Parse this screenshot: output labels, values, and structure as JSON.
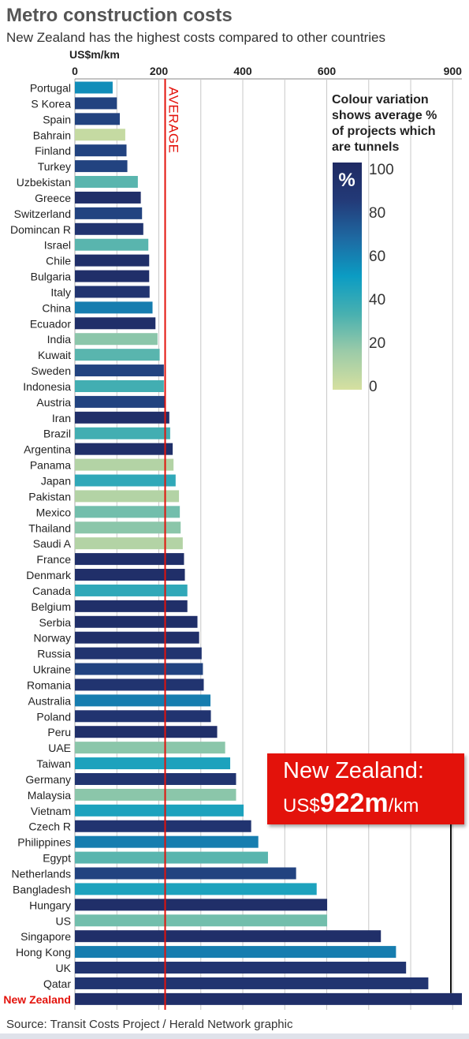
{
  "title": "Metro construction costs",
  "subtitle": "New Zealand has the highest costs compared to other countries",
  "unit_label": "US$m/km",
  "source": "Source: Transit Costs Project / Herald Network graphic",
  "average_label": "AVERAGE",
  "callout": {
    "line1": "New Zealand:",
    "currency": "US$",
    "value": "922m",
    "unit": "/km"
  },
  "legend": {
    "title_lines": [
      "Colour variation",
      "shows average %",
      "of projects which",
      "are tunnels"
    ],
    "symbol": "%",
    "ticks": [
      "100",
      "80",
      "60",
      "40",
      "20",
      "0"
    ]
  },
  "colors": {
    "accent": "#e3120b",
    "scale": [
      "#d6e0a0",
      "#9ccba8",
      "#48b0b0",
      "#0b9cc3",
      "#1e69a2",
      "#233a78",
      "#1f2a63"
    ]
  },
  "chart_data": {
    "type": "bar",
    "orientation": "horizontal",
    "xlim": [
      0,
      922
    ],
    "x_ticks": [
      0,
      200,
      400,
      600,
      900
    ],
    "grid": true,
    "average": 215,
    "legend_position": "top-right",
    "categories": [
      "Portugal",
      "S Korea",
      "Spain",
      "Bahrain",
      "Finland",
      "Turkey",
      "Uzbekistan",
      "Greece",
      "Switzerland",
      "Domincan R",
      "Israel",
      "Chile",
      "Bulgaria",
      "Italy",
      "China",
      "Ecuador",
      "India",
      "Kuwait",
      "Sweden",
      "Indonesia",
      "Austria",
      "Iran",
      "Brazil",
      "Argentina",
      "Panama",
      "Japan",
      "Pakistan",
      "Mexico",
      "Thailand",
      "Saudi A",
      "France",
      "Denmark",
      "Canada",
      "Belgium",
      "Serbia",
      "Norway",
      "Russia",
      "Ukraine",
      "Romania",
      "Australia",
      "Poland",
      "Peru",
      "UAE",
      "Taiwan",
      "Germany",
      "Malaysia",
      "Vietnam",
      "Czech R",
      "Philippines",
      "Egypt",
      "Netherlands",
      "Bangladesh",
      "Hungary",
      "US",
      "Singapore",
      "Hong Kong",
      "UK",
      "Qatar",
      "New Zealand"
    ],
    "values": [
      90,
      100,
      107,
      120,
      123,
      125,
      150,
      157,
      160,
      163,
      175,
      177,
      177,
      178,
      185,
      192,
      197,
      202,
      212,
      212,
      214,
      225,
      227,
      233,
      235,
      240,
      248,
      250,
      252,
      257,
      260,
      262,
      268,
      268,
      292,
      296,
      302,
      305,
      307,
      323,
      324,
      339,
      358,
      370,
      384,
      384,
      402,
      420,
      437,
      460,
      527,
      576,
      601,
      601,
      729,
      765,
      789,
      842,
      922
    ],
    "tunnel_pct": [
      55,
      80,
      80,
      5,
      80,
      80,
      30,
      95,
      80,
      90,
      30,
      95,
      95,
      90,
      60,
      95,
      20,
      30,
      80,
      35,
      80,
      95,
      35,
      95,
      10,
      40,
      10,
      25,
      20,
      10,
      95,
      95,
      40,
      95,
      95,
      95,
      90,
      80,
      90,
      60,
      90,
      95,
      20,
      45,
      90,
      20,
      45,
      90,
      60,
      30,
      80,
      45,
      95,
      25,
      95,
      60,
      90,
      90,
      95
    ],
    "highlight": "New Zealand"
  }
}
